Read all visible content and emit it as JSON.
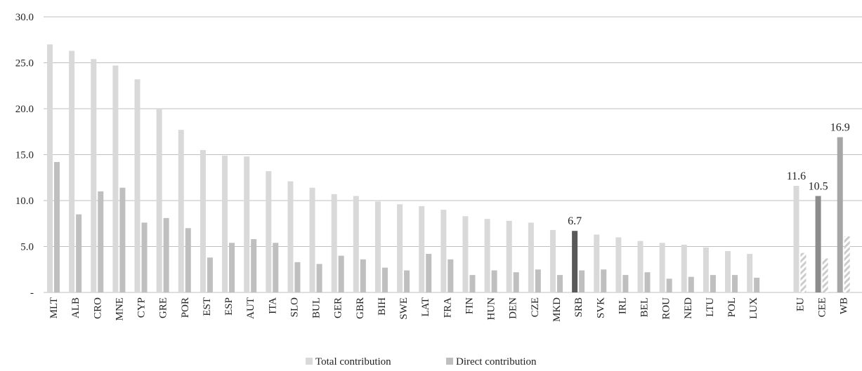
{
  "chart_data": {
    "type": "bar",
    "ylim": [
      0,
      30
    ],
    "yticks": [
      {
        "value": 0,
        "label": "-"
      },
      {
        "value": 5,
        "label": "5.0"
      },
      {
        "value": 10,
        "label": "10.0"
      },
      {
        "value": 15,
        "label": "15.0"
      },
      {
        "value": 20,
        "label": "20.0"
      },
      {
        "value": 25,
        "label": "25.0"
      },
      {
        "value": 30,
        "label": "30.0"
      }
    ],
    "grid": true,
    "legend_position": "bottom-center",
    "colors": {
      "total": "#d9d9d9",
      "direct": "#bfbfbf",
      "srb_total": "#595959",
      "eu_total": "#d9d9d9",
      "cee_total": "#8c8c8c",
      "wb_total": "#a6a6a6",
      "hatch": "#cccccc",
      "grid": "#bfbfbf"
    },
    "series": [
      {
        "name": "Total contribution",
        "key": "total"
      },
      {
        "name": "Direct contribution",
        "key": "direct"
      }
    ],
    "categories": [
      {
        "code": "MLT",
        "total": 27.0,
        "direct": 14.2
      },
      {
        "code": "ALB",
        "total": 26.3,
        "direct": 8.5
      },
      {
        "code": "CRO",
        "total": 25.4,
        "direct": 11.0
      },
      {
        "code": "MNE",
        "total": 24.7,
        "direct": 11.4
      },
      {
        "code": "CYP",
        "total": 23.2,
        "direct": 7.6
      },
      {
        "code": "GRE",
        "total": 20.0,
        "direct": 8.1
      },
      {
        "code": "POR",
        "total": 17.7,
        "direct": 7.0
      },
      {
        "code": "EST",
        "total": 15.5,
        "direct": 3.8
      },
      {
        "code": "ESP",
        "total": 14.9,
        "direct": 5.4
      },
      {
        "code": "AUT",
        "total": 14.8,
        "direct": 5.8
      },
      {
        "code": "ITA",
        "total": 13.2,
        "direct": 5.4
      },
      {
        "code": "SLO",
        "total": 12.1,
        "direct": 3.3
      },
      {
        "code": "BUL",
        "total": 11.4,
        "direct": 3.1
      },
      {
        "code": "GER",
        "total": 10.7,
        "direct": 4.0
      },
      {
        "code": "GBR",
        "total": 10.5,
        "direct": 3.6
      },
      {
        "code": "BIH",
        "total": 9.9,
        "direct": 2.7
      },
      {
        "code": "SWE",
        "total": 9.6,
        "direct": 2.4
      },
      {
        "code": "LAT",
        "total": 9.4,
        "direct": 4.2
      },
      {
        "code": "FRA",
        "total": 9.0,
        "direct": 3.6
      },
      {
        "code": "FIN",
        "total": 8.3,
        "direct": 1.9
      },
      {
        "code": "HUN",
        "total": 8.0,
        "direct": 2.4
      },
      {
        "code": "DEN",
        "total": 7.8,
        "direct": 2.2
      },
      {
        "code": "CZE",
        "total": 7.6,
        "direct": 2.5
      },
      {
        "code": "MKD",
        "total": 6.8,
        "direct": 1.9
      },
      {
        "code": "SRB",
        "total": 6.7,
        "direct": 2.4,
        "label": "6.7",
        "highlight": "srb_total"
      },
      {
        "code": "SVK",
        "total": 6.3,
        "direct": 2.5
      },
      {
        "code": "IRL",
        "total": 6.0,
        "direct": 1.9
      },
      {
        "code": "BEL",
        "total": 5.6,
        "direct": 2.2
      },
      {
        "code": "ROU",
        "total": 5.4,
        "direct": 1.5
      },
      {
        "code": "NED",
        "total": 5.2,
        "direct": 1.7
      },
      {
        "code": "LTU",
        "total": 4.9,
        "direct": 1.9
      },
      {
        "code": "POL",
        "total": 4.5,
        "direct": 1.9
      },
      {
        "code": "LUX",
        "total": 4.2,
        "direct": 1.6
      },
      {
        "code": "EU",
        "total": 11.6,
        "direct": 4.3,
        "label": "11.6",
        "highlight": "eu_total",
        "hatched": true,
        "group_gap": true
      },
      {
        "code": "CEE",
        "total": 10.5,
        "direct": 3.7,
        "label": "10.5",
        "highlight": "cee_total",
        "hatched": true
      },
      {
        "code": "WB",
        "total": 16.9,
        "direct": 6.1,
        "label": "16.9",
        "highlight": "wb_total",
        "hatched": true
      }
    ]
  }
}
